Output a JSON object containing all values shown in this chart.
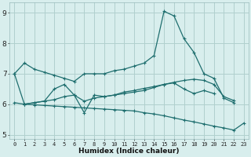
{
  "bg_color": "#d8eeed",
  "grid_color": "#b0d0ce",
  "line_color": "#1e6e6e",
  "xlabel": "Humidex (Indice chaleur)",
  "xlim": [
    -0.5,
    23.5
  ],
  "ylim": [
    4.85,
    9.35
  ],
  "xticks": [
    0,
    1,
    2,
    3,
    4,
    5,
    6,
    7,
    8,
    9,
    10,
    11,
    12,
    13,
    14,
    15,
    16,
    17,
    18,
    19,
    20,
    21,
    22,
    23
  ],
  "yticks": [
    5,
    6,
    7,
    8,
    9
  ],
  "lines": [
    {
      "x": [
        0,
        1,
        2,
        3,
        4,
        5,
        6,
        7,
        8,
        9,
        10,
        11,
        12,
        13,
        14,
        15,
        16,
        17,
        18,
        19,
        20,
        21,
        22
      ],
      "y": [
        7.0,
        7.35,
        7.15,
        7.05,
        6.95,
        6.85,
        6.75,
        7.0,
        7.0,
        7.0,
        7.1,
        7.15,
        7.25,
        7.35,
        7.6,
        9.05,
        8.9,
        8.15,
        7.7,
        7.0,
        6.85,
        6.2,
        6.05
      ]
    },
    {
      "x": [
        1,
        2,
        3,
        4,
        5,
        6,
        7,
        8,
        9,
        10,
        11,
        12,
        13,
        14,
        15,
        16,
        17,
        18,
        19,
        20
      ],
      "y": [
        6.0,
        6.05,
        6.1,
        6.5,
        6.65,
        6.3,
        5.72,
        6.3,
        6.25,
        6.3,
        6.35,
        6.4,
        6.45,
        6.55,
        6.65,
        6.7,
        6.5,
        6.35,
        6.45,
        6.35
      ]
    },
    {
      "x": [
        0,
        1,
        2,
        3,
        4,
        5,
        6,
        7,
        8,
        9,
        10,
        11,
        12,
        13,
        14,
        15,
        16,
        17,
        18,
        19,
        20,
        21,
        22,
        23
      ],
      "y": [
        6.05,
        6.0,
        6.05,
        6.1,
        6.15,
        6.25,
        6.3,
        6.1,
        6.2,
        6.25,
        6.3,
        6.4,
        6.45,
        6.52,
        6.58,
        6.65,
        6.72,
        6.78,
        6.82,
        6.78,
        6.65,
        6.25,
        6.12,
        null
      ]
    },
    {
      "x": [
        0,
        1,
        2,
        3,
        4,
        5,
        6,
        7,
        8,
        9,
        10,
        11,
        12,
        13,
        14,
        15,
        16,
        17,
        18,
        19,
        20,
        21,
        22,
        23
      ],
      "y": [
        7.0,
        6.0,
        5.98,
        5.96,
        5.94,
        5.92,
        5.9,
        5.88,
        5.86,
        5.84,
        5.82,
        5.8,
        5.78,
        5.72,
        5.68,
        5.62,
        5.55,
        5.48,
        5.42,
        5.35,
        5.28,
        5.22,
        5.15,
        5.38
      ]
    }
  ],
  "marker": "+",
  "markersize": 3.5,
  "linewidth": 0.9
}
